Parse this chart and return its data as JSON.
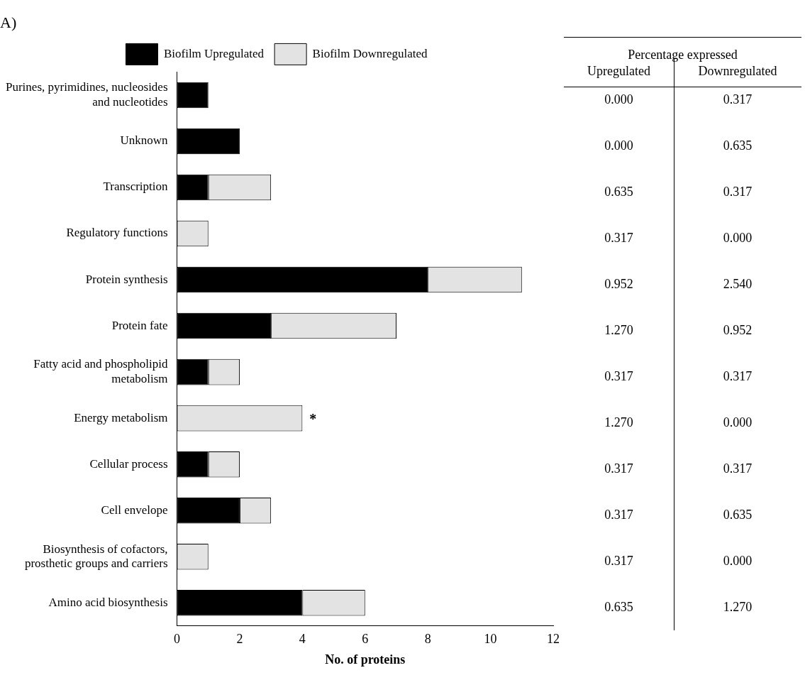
{
  "chart_data": [
    {
      "type": "bar",
      "orientation": "horizontal",
      "stacked": true,
      "title": "A)",
      "xlabel": "No. of proteins",
      "categories": [
        "Purines, pyrimidines, nucleosides and nucleotides",
        "Unknown",
        "Transcription",
        "Regulatory functions",
        "Protein synthesis",
        "Protein fate",
        "Fatty acid and phospholipid metabolism",
        "Energy metabolism",
        "Cellular process",
        "Cell envelope",
        "Biosynthesis of cofactors, prosthetic groups and carriers",
        "Amino acid biosynthesis"
      ],
      "series": [
        {
          "name": "Biofilm Upregulated",
          "color": "#000000",
          "values": [
            1,
            2,
            1,
            0,
            8,
            3,
            1,
            0,
            1,
            2,
            0,
            4
          ]
        },
        {
          "name": "Biofilm Downregulated",
          "color": "#e3e3e3",
          "values": [
            0,
            0,
            2,
            1,
            3,
            4,
            1,
            4,
            1,
            1,
            1,
            2
          ]
        }
      ],
      "xlim": [
        0,
        12
      ],
      "xticks": [
        0,
        2,
        4,
        6,
        8,
        10,
        12
      ],
      "grid": false,
      "legend": "top",
      "annotations": [
        {
          "text": "*",
          "x": 4,
          "y": "Energy metabolism"
        }
      ]
    },
    {
      "type": "other",
      "title": "Percentage expressed",
      "categories": [
        "Upregulated",
        "Downregulated"
      ],
      "annotations": [
        "0.000",
        "0.317",
        "0.000",
        "0.635",
        "0.635",
        "0.317",
        "0.317",
        "0.000",
        "0.952",
        "2.540",
        "1.270",
        "0.952",
        "0.317",
        "0.317",
        "1.270",
        "0.000",
        "0.317",
        "0.317",
        "0.317",
        "0.635",
        "0.317",
        "0.000",
        "0.635",
        "1.270"
      ]
    }
  ]
}
